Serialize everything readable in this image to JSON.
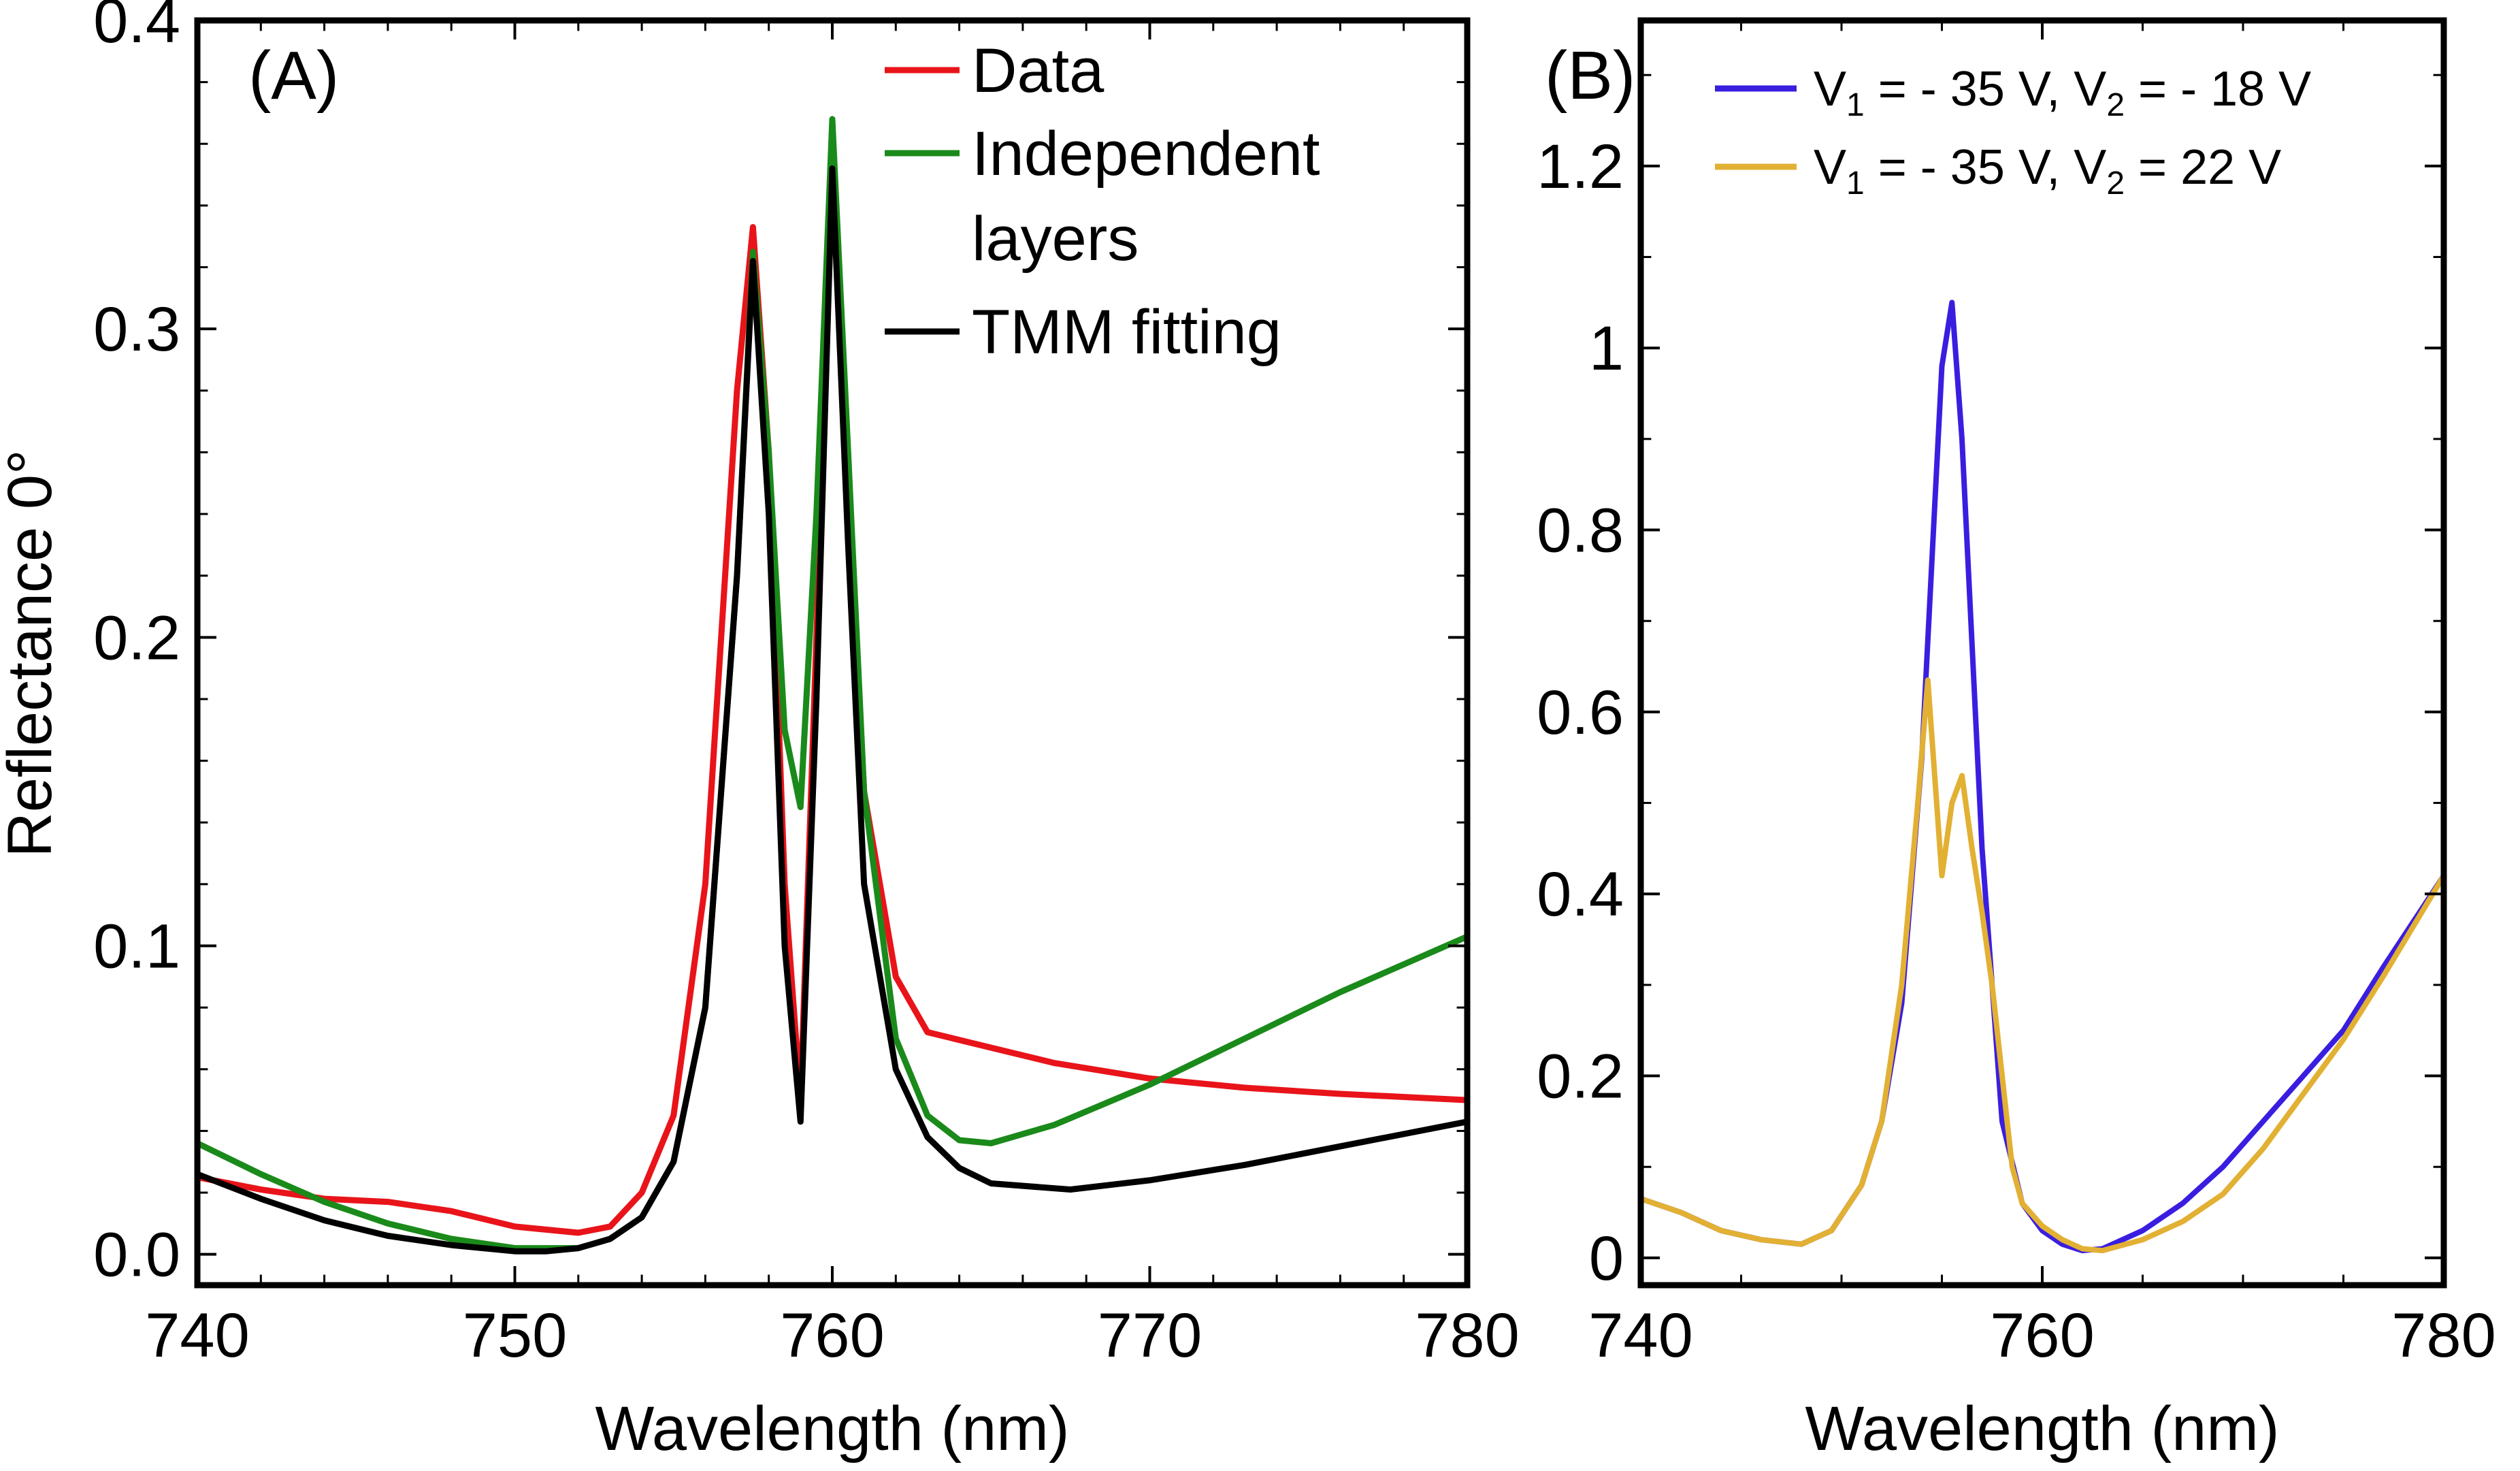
{
  "chart_data": [
    {
      "panel_label": "(A)",
      "type": "line",
      "xlabel": "Wavelength (nm)",
      "ylabel": "Reflectance 0°",
      "xlim": [
        740,
        780
      ],
      "ylim": [
        -0.01,
        0.4
      ],
      "xticks": [
        740,
        750,
        760,
        770,
        780
      ],
      "xtick_labels": [
        "740",
        "750",
        "760",
        "770",
        "780"
      ],
      "yticks": [
        0.0,
        0.1,
        0.2,
        0.3,
        0.4
      ],
      "ytick_labels": [
        "0.0",
        "0.1",
        "0.2",
        "0.3",
        "0.4"
      ],
      "legend_position": "top-right",
      "series": [
        {
          "name": "Data",
          "color": "#e8141a",
          "x": [
            740,
            742,
            744,
            746,
            748,
            750,
            752,
            753,
            754,
            755,
            756,
            757,
            757.5,
            758,
            758.5,
            759,
            759.5,
            760,
            760.5,
            761,
            762,
            763,
            765,
            767,
            770,
            773,
            776,
            780
          ],
          "y": [
            0.025,
            0.021,
            0.018,
            0.017,
            0.014,
            0.009,
            0.007,
            0.009,
            0.02,
            0.045,
            0.12,
            0.28,
            0.333,
            0.26,
            0.12,
            0.05,
            0.2,
            0.348,
            0.25,
            0.15,
            0.09,
            0.072,
            0.067,
            0.062,
            0.057,
            0.054,
            0.052,
            0.05
          ]
        },
        {
          "name": "Independent layers",
          "color": "#1a8a1a",
          "x": [
            740,
            742,
            744,
            746,
            748,
            750,
            752,
            753,
            754,
            755,
            756,
            757,
            757.5,
            758,
            758.5,
            759,
            759.5,
            760,
            760.5,
            761,
            762,
            763,
            764,
            765,
            767,
            770,
            773,
            776,
            780
          ],
          "y": [
            0.036,
            0.026,
            0.017,
            0.01,
            0.005,
            0.002,
            0.002,
            0.005,
            0.012,
            0.03,
            0.08,
            0.22,
            0.325,
            0.26,
            0.17,
            0.145,
            0.24,
            0.368,
            0.26,
            0.15,
            0.07,
            0.045,
            0.037,
            0.036,
            0.042,
            0.055,
            0.07,
            0.085,
            0.103
          ]
        },
        {
          "name": "TMM fitting",
          "color": "#000000",
          "x": [
            740,
            742,
            744,
            746,
            748,
            750,
            751,
            752,
            753,
            754,
            755,
            756,
            757,
            757.5,
            758,
            758.5,
            759,
            759.5,
            760,
            760.5,
            761,
            762,
            763,
            764,
            765,
            767.5,
            770,
            773,
            776,
            780
          ],
          "y": [
            0.026,
            0.018,
            0.011,
            0.006,
            0.003,
            0.001,
            0.001,
            0.002,
            0.005,
            0.012,
            0.03,
            0.08,
            0.22,
            0.322,
            0.24,
            0.1,
            0.043,
            0.18,
            0.352,
            0.23,
            0.12,
            0.06,
            0.038,
            0.028,
            0.023,
            0.021,
            0.024,
            0.029,
            0.035,
            0.043
          ]
        }
      ]
    },
    {
      "panel_label": "(B)",
      "type": "line",
      "xlabel": "Wavelength (nm)",
      "ylabel": "",
      "xlim": [
        740,
        780
      ],
      "ylim": [
        -0.03,
        1.36
      ],
      "xticks": [
        740,
        760,
        780
      ],
      "xtick_labels": [
        "740",
        "760",
        "780"
      ],
      "yticks": [
        0,
        0.2,
        0.4,
        0.6,
        0.8,
        1,
        1.2
      ],
      "ytick_labels": [
        "0",
        "0.2",
        "0.4",
        "0.6",
        "0.8",
        "1",
        "1.2"
      ],
      "legend_position": "top-right",
      "series": [
        {
          "name": "V1 = - 35 V, V2 = - 18 V",
          "legend": {
            "a": "V",
            "a_sub": "1",
            "b": " = - 35 V, V",
            "b_sub": "2",
            "c": " = - 18 V"
          },
          "color": "#3a1ee0",
          "x": [
            740,
            742,
            744,
            746,
            748,
            749.5,
            751,
            752,
            753,
            754,
            755,
            755.5,
            756,
            757,
            758,
            759,
            760,
            761,
            762,
            763,
            765,
            767,
            769,
            771,
            773,
            775,
            777,
            780
          ],
          "y": [
            0.065,
            0.05,
            0.03,
            0.02,
            0.015,
            0.03,
            0.08,
            0.15,
            0.28,
            0.55,
            0.98,
            1.05,
            0.9,
            0.45,
            0.15,
            0.06,
            0.03,
            0.015,
            0.008,
            0.01,
            0.03,
            0.06,
            0.1,
            0.15,
            0.2,
            0.25,
            0.32,
            0.42
          ]
        },
        {
          "name": "V1 = - 35 V, V2 = 22 V",
          "legend": {
            "a": "V",
            "a_sub": "1",
            "b": " = - 35 V, V",
            "b_sub": "2",
            "c": " = 22 V"
          },
          "color": "#e2b033",
          "x": [
            740,
            742,
            744,
            746,
            748,
            749.5,
            751,
            752,
            753,
            753.8,
            754.3,
            755,
            755.5,
            756,
            756.5,
            757,
            757.5,
            758,
            758.5,
            759,
            760,
            761,
            762,
            763,
            765,
            767,
            769,
            771,
            773,
            775,
            777,
            780
          ],
          "y": [
            0.065,
            0.05,
            0.03,
            0.02,
            0.015,
            0.03,
            0.08,
            0.15,
            0.3,
            0.5,
            0.635,
            0.42,
            0.5,
            0.53,
            0.45,
            0.38,
            0.3,
            0.2,
            0.1,
            0.06,
            0.035,
            0.02,
            0.01,
            0.008,
            0.02,
            0.04,
            0.07,
            0.12,
            0.18,
            0.24,
            0.31,
            0.42
          ]
        }
      ]
    }
  ]
}
